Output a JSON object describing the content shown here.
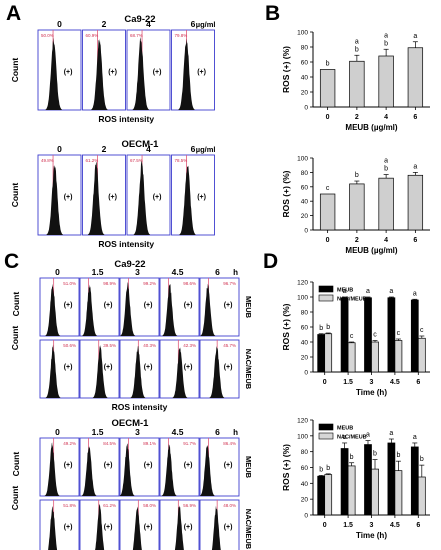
{
  "panels": {
    "A": "A",
    "B": "B",
    "C": "C",
    "D": "D"
  },
  "hist_labels": {
    "count": "Count",
    "ros_intensity": "ROS intensity",
    "positive": "(+)",
    "row_meub": "MEUB",
    "row_nac": "NAC/MEUB"
  },
  "panelA": {
    "dose_labels": [
      "0",
      "2",
      "4",
      "6"
    ],
    "units": "µg/ml",
    "blocks": [
      {
        "title": "Ca9-22",
        "gate_text": [
          "50.0%",
          "60.9%",
          "68.7%",
          "79.8%"
        ]
      },
      {
        "title": "OECM-1",
        "gate_text": [
          "49.8%",
          "61.2%",
          "67.5%",
          "78.5%"
        ]
      }
    ]
  },
  "panelC": {
    "time_labels": [
      "0",
      "1.5",
      "3",
      "4.5",
      "6"
    ],
    "units": "h",
    "blocks": [
      {
        "title": "Ca9-22",
        "gate_text": [
          [
            "51.0%",
            "98.9%",
            "99.2%",
            "98.6%",
            "96.7%"
          ],
          [
            "50.6%",
            "39.5%",
            "40.3%",
            "42.3%",
            "45.7%"
          ]
        ]
      },
      {
        "title": "OECM-1",
        "gate_text": [
          [
            "49.2%",
            "84.5%",
            "89.1%",
            "91.7%",
            "86.4%"
          ],
          [
            "51.8%",
            "61.2%",
            "58.0%",
            "56.9%",
            "48.0%"
          ]
        ]
      }
    ]
  },
  "chart_data": [
    {
      "type": "bar",
      "panel": "B-top",
      "categories": [
        "0",
        "2",
        "4",
        "6"
      ],
      "values": [
        50,
        61,
        68,
        79
      ],
      "errors": [
        0,
        8,
        9,
        8
      ],
      "letters": [
        "b",
        "a\nb",
        "a\nb",
        "a"
      ],
      "xlabel": "MEUB (µg/ml)",
      "ylabel": "ROS (+) (%)",
      "ylim": [
        0,
        100
      ],
      "yticks": [
        0,
        20,
        40,
        60,
        80,
        100
      ],
      "bar_color": "#cfcfcf"
    },
    {
      "type": "bar",
      "panel": "B-bottom",
      "categories": [
        "0",
        "2",
        "4",
        "6"
      ],
      "values": [
        50,
        64,
        72,
        76
      ],
      "errors": [
        0,
        4,
        5,
        4
      ],
      "letters": [
        "c",
        "b",
        "a\nb",
        "a"
      ],
      "xlabel": "MEUB (µg/ml)",
      "ylabel": "ROS (+) (%)",
      "ylim": [
        0,
        100
      ],
      "yticks": [
        0,
        20,
        40,
        60,
        80,
        100
      ],
      "bar_color": "#cfcfcf"
    },
    {
      "type": "bar",
      "panel": "D-top",
      "categories": [
        "0",
        "1.5",
        "3",
        "4.5",
        "6"
      ],
      "series": [
        {
          "name": "MEUB",
          "values": [
            50,
            99,
            99,
            99,
            96
          ],
          "errors": [
            1,
            1,
            1,
            1,
            1
          ],
          "letters": [
            "b",
            "a",
            "a",
            "a",
            "a"
          ],
          "color": "#000000"
        },
        {
          "name": "NAC/MEUB",
          "values": [
            51,
            39,
            40,
            42,
            45
          ],
          "errors": [
            1,
            1,
            2,
            2,
            3
          ],
          "letters": [
            "b",
            "c",
            "c",
            "c",
            "c"
          ],
          "color": "#d6d6d6"
        }
      ],
      "xlabel": "Time (h)",
      "ylabel": "ROS (+) (%)",
      "ylim": [
        0,
        120
      ],
      "yticks": [
        0,
        20,
        40,
        60,
        80,
        100,
        120
      ],
      "legend": "top-left"
    },
    {
      "type": "bar",
      "panel": "D-bottom",
      "categories": [
        "0",
        "1.5",
        "3",
        "4.5",
        "6"
      ],
      "series": [
        {
          "name": "MEUB",
          "values": [
            49,
            84,
            89,
            91,
            86
          ],
          "errors": [
            1,
            7,
            5,
            5,
            5
          ],
          "letters": [
            "b",
            "a",
            "a",
            "a",
            "a"
          ],
          "color": "#000000"
        },
        {
          "name": "NAC/MEUB",
          "values": [
            51,
            62,
            58,
            56,
            48
          ],
          "errors": [
            1,
            4,
            12,
            12,
            15
          ],
          "letters": [
            "b",
            "b",
            "b",
            "b",
            "b"
          ],
          "color": "#d6d6d6"
        }
      ],
      "xlabel": "Time (h)",
      "ylabel": "ROS (+) (%)",
      "ylim": [
        0,
        120
      ],
      "yticks": [
        0,
        20,
        40,
        60,
        80,
        100,
        120
      ],
      "legend": "top-left"
    }
  ]
}
